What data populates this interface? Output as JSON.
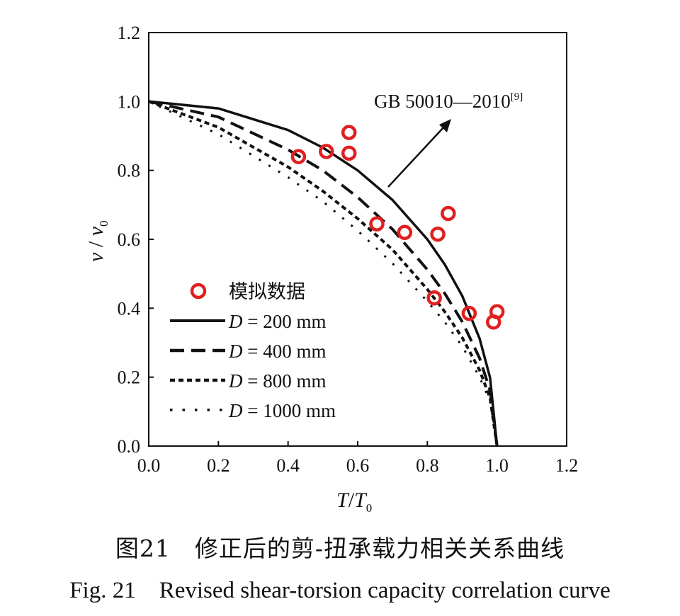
{
  "chart_data": {
    "type": "line",
    "xlabel_main": "T",
    "xlabel_sub": "T",
    "xlabel_subscript": "0",
    "ylabel_main": "v",
    "ylabel_sub": "v",
    "ylabel_subscript": "0",
    "xlim": [
      0.0,
      1.2
    ],
    "ylim": [
      0.0,
      1.2
    ],
    "xticks": [
      "0.0",
      "0.2",
      "0.4",
      "0.6",
      "0.8",
      "1.0",
      "1.2"
    ],
    "yticks": [
      "0.0",
      "0.2",
      "0.4",
      "0.6",
      "0.8",
      "1.0",
      "1.2"
    ],
    "grid": false,
    "legend_position": "lower-left",
    "annotation": {
      "text": "GB 50010—2010",
      "superscript": "[9]"
    },
    "scatter": {
      "name": "模拟数据",
      "color": "#e02020",
      "points": [
        [
          0.43,
          0.84
        ],
        [
          0.51,
          0.855
        ],
        [
          0.575,
          0.91
        ],
        [
          0.575,
          0.85
        ],
        [
          0.655,
          0.645
        ],
        [
          0.735,
          0.62
        ],
        [
          0.83,
          0.615
        ],
        [
          0.86,
          0.675
        ],
        [
          0.82,
          0.43
        ],
        [
          0.92,
          0.385
        ],
        [
          1.0,
          0.39
        ],
        [
          0.99,
          0.36
        ]
      ]
    },
    "series": [
      {
        "name": "D = 200 mm",
        "label_var": "D",
        "label_rest": " = 200 mm",
        "style": "solid",
        "x": [
          0.0,
          0.2,
          0.4,
          0.5,
          0.6,
          0.7,
          0.8,
          0.85,
          0.9,
          0.95,
          0.98,
          1.0
        ],
        "y": [
          1.0,
          0.98,
          0.917,
          0.866,
          0.8,
          0.714,
          0.6,
          0.527,
          0.436,
          0.312,
          0.199,
          0.0
        ]
      },
      {
        "name": "D = 400 mm",
        "label_var": "D",
        "label_rest": " = 400 mm",
        "style": "dashed",
        "x": [
          0.0,
          0.2,
          0.4,
          0.5,
          0.6,
          0.7,
          0.8,
          0.85,
          0.9,
          0.95,
          0.98,
          1.0
        ],
        "y": [
          1.0,
          0.955,
          0.86,
          0.8,
          0.722,
          0.629,
          0.512,
          0.443,
          0.361,
          0.255,
          0.162,
          0.0
        ]
      },
      {
        "name": "D = 800 mm",
        "label_var": "D",
        "label_rest": " = 800 mm",
        "style": "dotted",
        "x": [
          0.0,
          0.2,
          0.4,
          0.5,
          0.6,
          0.7,
          0.8,
          0.85,
          0.9,
          0.95,
          0.98,
          1.0
        ],
        "y": [
          1.0,
          0.925,
          0.81,
          0.74,
          0.66,
          0.57,
          0.455,
          0.39,
          0.315,
          0.22,
          0.14,
          0.0
        ]
      },
      {
        "name": "D = 1000 mm",
        "label_var": "D",
        "label_rest": " = 1000 mm",
        "style": "sparse-dotted",
        "x": [
          0.0,
          0.2,
          0.4,
          0.5,
          0.6,
          0.7,
          0.8,
          0.85,
          0.9,
          0.95,
          0.98,
          1.0
        ],
        "y": [
          1.0,
          0.905,
          0.78,
          0.71,
          0.625,
          0.53,
          0.42,
          0.36,
          0.29,
          0.2,
          0.13,
          0.0
        ]
      }
    ]
  },
  "caption_cn": "图21　修正后的剪-扭承载力相关关系曲线",
  "caption_en": "Fig. 21　Revised shear-torsion capacity correlation curve"
}
